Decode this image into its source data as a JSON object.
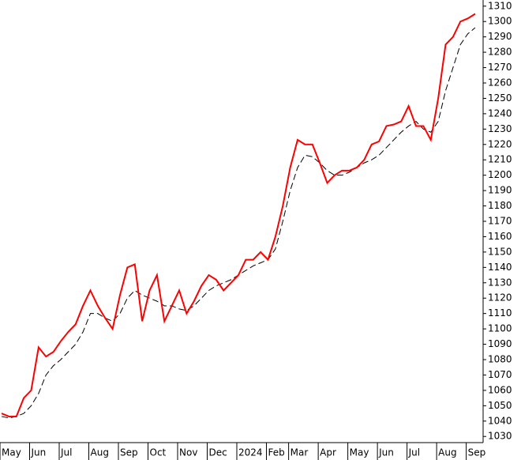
{
  "chart_data": {
    "type": "line",
    "categories": [
      "May",
      null,
      null,
      null,
      "Jun",
      null,
      null,
      null,
      "Jul",
      null,
      null,
      null,
      "Aug",
      null,
      null,
      null,
      "Sep",
      null,
      null,
      null,
      "Oct",
      null,
      null,
      null,
      "Nov",
      null,
      null,
      null,
      "Dec",
      null,
      null,
      null,
      "2024",
      null,
      null,
      null,
      "Feb",
      null,
      null,
      "Mar",
      null,
      null,
      null,
      "Apr",
      null,
      null,
      null,
      "May",
      null,
      null,
      null,
      "Jun",
      null,
      null,
      null,
      "Jul",
      null,
      null,
      null,
      "Aug",
      null,
      null,
      null,
      "Sep",
      null
    ],
    "series": [
      {
        "color": "#ff0000",
        "dashed": false,
        "values": [
          1045,
          1043,
          1043,
          1055,
          1060,
          1088,
          1082,
          1085,
          1092,
          1098,
          1103,
          1115,
          1125,
          1115,
          1107,
          1100,
          1122,
          1140,
          1142,
          1105,
          1125,
          1135,
          1105,
          1115,
          1125,
          1110,
          1118,
          1128,
          1135,
          1132,
          1125,
          1130,
          1135,
          1145,
          1145,
          1150,
          1145,
          1160,
          1180,
          1205,
          1223,
          1220,
          1220,
          1208,
          1195,
          1200,
          1203,
          1203,
          1205,
          1210,
          1220,
          1222,
          1232,
          1233,
          1235,
          1245,
          1232,
          1232,
          1223,
          1250,
          1285,
          1290,
          1300,
          1302,
          1305
        ]
      },
      {
        "color": "#000000",
        "dashed": true,
        "values": [
          1043,
          1042,
          1043,
          1045,
          1050,
          1058,
          1070,
          1076,
          1080,
          1085,
          1090,
          1098,
          1110,
          1110,
          1107,
          1105,
          1110,
          1120,
          1125,
          1122,
          1120,
          1118,
          1115,
          1115,
          1113,
          1112,
          1115,
          1120,
          1125,
          1128,
          1130,
          1132,
          1135,
          1138,
          1141,
          1143,
          1145,
          1152,
          1170,
          1190,
          1205,
          1213,
          1212,
          1208,
          1203,
          1200,
          1200,
          1202,
          1205,
          1208,
          1210,
          1213,
          1218,
          1223,
          1228,
          1232,
          1235,
          1230,
          1228,
          1235,
          1255,
          1270,
          1285,
          1292,
          1296
        ]
      }
    ],
    "ylim": [
      1026,
      1314
    ],
    "yticks": [
      1030,
      1040,
      1050,
      1060,
      1070,
      1080,
      1090,
      1100,
      1110,
      1120,
      1130,
      1140,
      1150,
      1160,
      1170,
      1180,
      1190,
      1200,
      1210,
      1220,
      1230,
      1240,
      1250,
      1260,
      1270,
      1280,
      1290,
      1300,
      1310
    ]
  }
}
